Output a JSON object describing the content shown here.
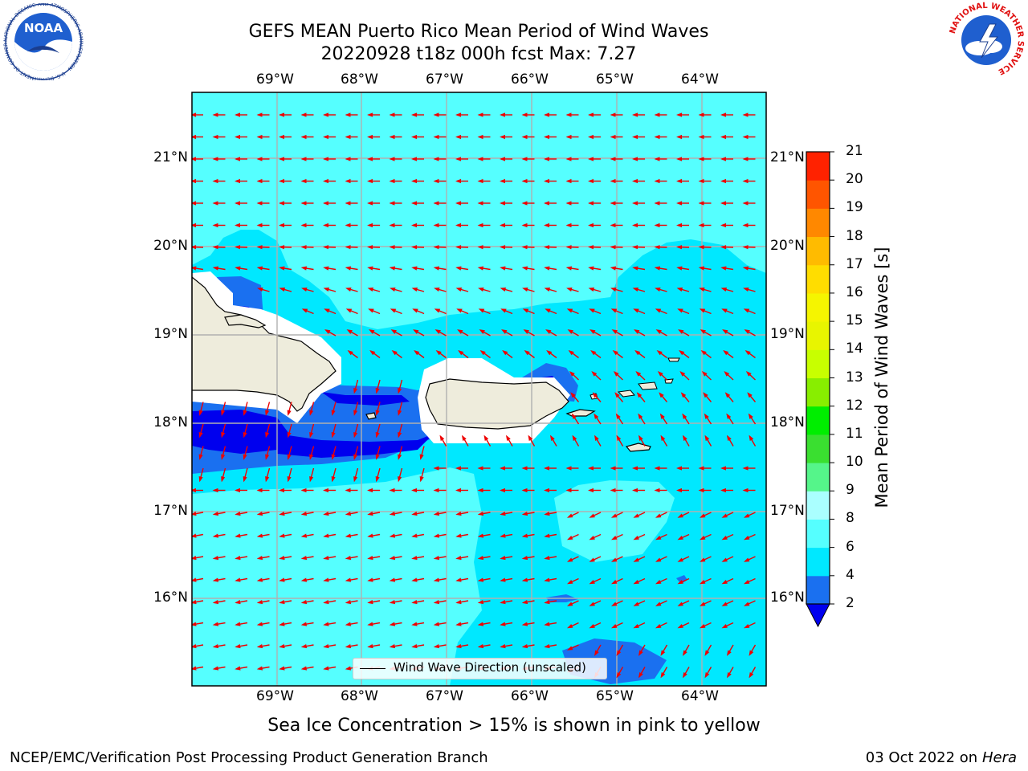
{
  "title_line1": "GEFS MEAN Puerto Rico Mean Period of Wind Waves",
  "title_line2": "20220928 t18z 000h fcst   Max: 7.27",
  "longitude_labels": [
    "69°W",
    "68°W",
    "67°W",
    "66°W",
    "65°W",
    "64°W"
  ],
  "latitude_labels": [
    "21°N",
    "20°N",
    "19°N",
    "18°N",
    "17°N",
    "16°N"
  ],
  "colorbar": {
    "title": "Mean Period of Wind Waves [s]",
    "tick_labels": [
      "2",
      "4",
      "6",
      "8",
      "9",
      "10",
      "11",
      "12",
      "13",
      "14",
      "15",
      "16",
      "17",
      "18",
      "19",
      "20",
      "21"
    ],
    "colors": [
      "#1a70f0",
      "#00e8ff",
      "#55ffff",
      "#aaffff",
      "#55f58a",
      "#3adf30",
      "#00ee00",
      "#88ee00",
      "#c8ff00",
      "#e8f500",
      "#f5f500",
      "#ffdd00",
      "#ffbb00",
      "#ff8800",
      "#ff5500",
      "#ff2200"
    ],
    "extend_color": "#0000ee"
  },
  "legend_label": "Wind Wave Direction (unscaled)",
  "caption": "Sea Ice Concentration > 15% is shown in pink to yellow",
  "footer_left": "NCEP/EMC/Verification Post Processing Product Generation Branch",
  "footer_right_text": "03 Oct 2022 on ",
  "footer_right_italic": "Hera",
  "logos": {
    "left_text": "NOAA",
    "left_ring_text": "NATIONAL OCEANIC AND ATMOSPHERIC ADMINISTRATION · U.S. DEPARTMENT OF COMMERCE",
    "right_ring_text": "NATIONAL WEATHER SERVICE"
  },
  "colors": {
    "ocean_base": "#55ffff",
    "ocean_deeper": "#00e8ff",
    "shallow_blue": "#1a70f0",
    "deep_blue": "#0000ee",
    "land": "#eeecdc",
    "arrow": "#ee0000",
    "grid": "#b0b0b0"
  }
}
